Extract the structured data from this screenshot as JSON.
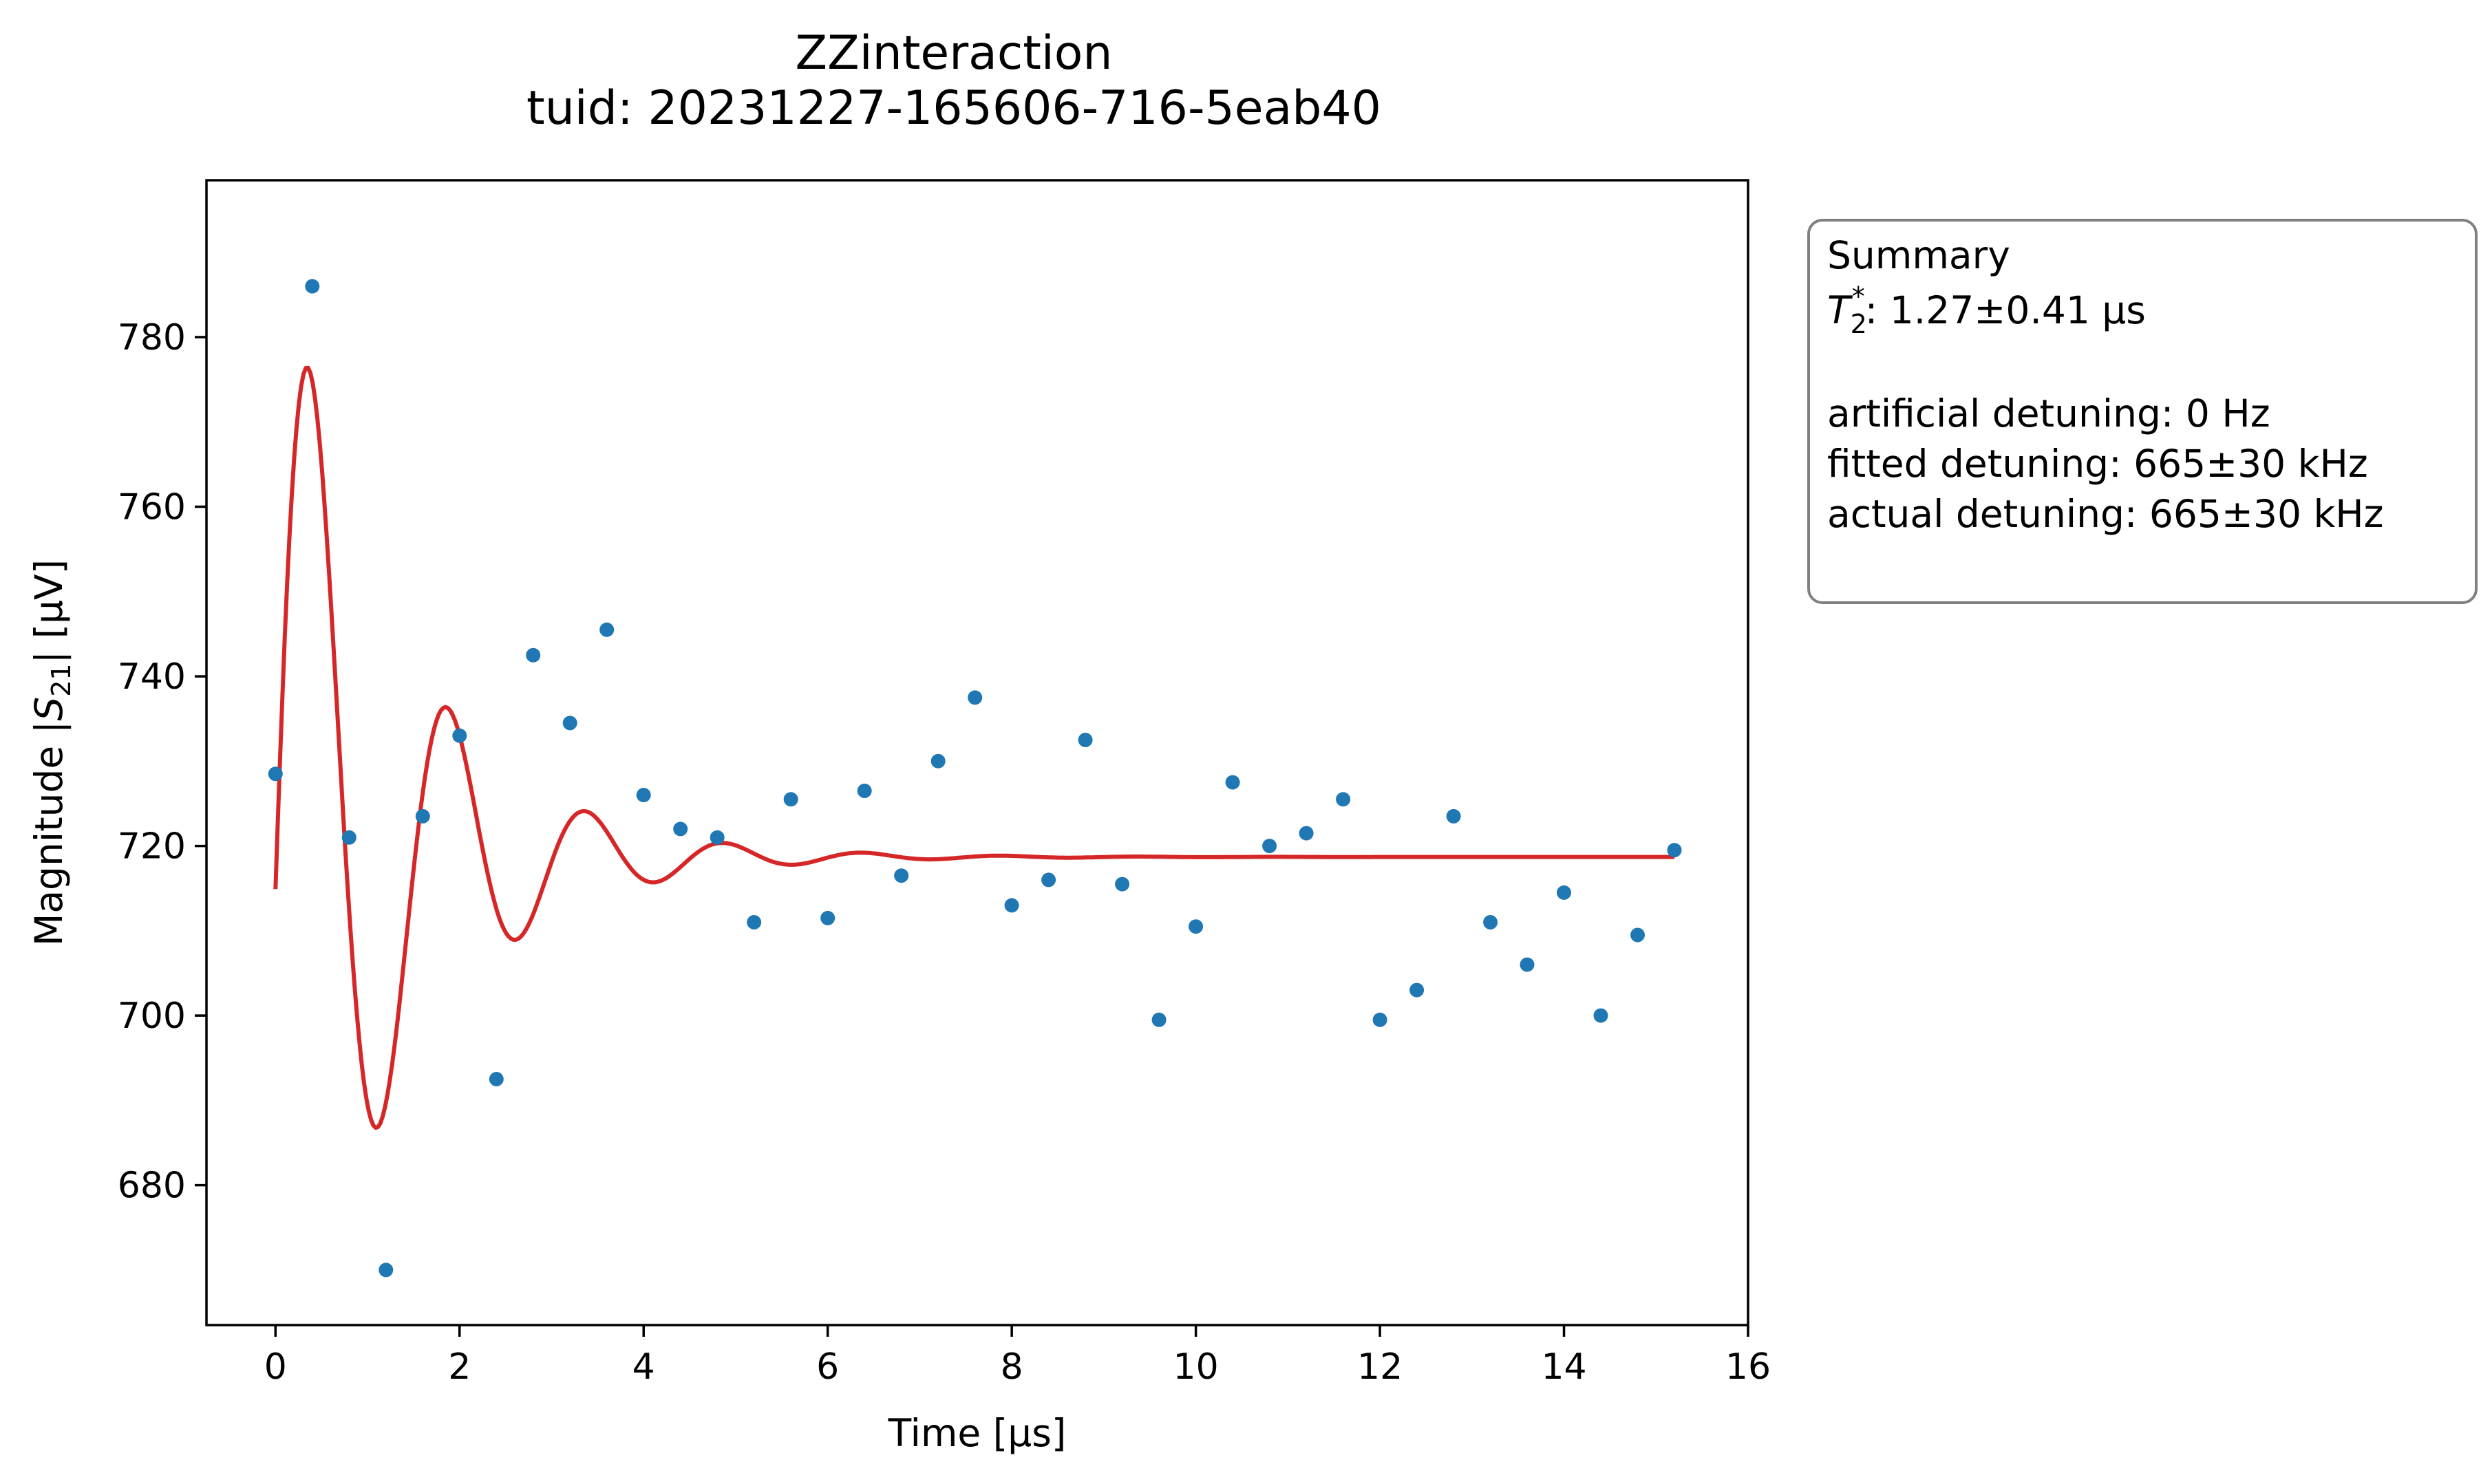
{
  "chart_data": {
    "type": "scatter",
    "title": "ZZinteraction",
    "subtitle": "tuid: 20231227-165606-716-5eab40",
    "xlabel": "Time [µs]",
    "ylabel_prefix": "Magnitude |",
    "ylabel_symbol": "S",
    "ylabel_subscript": "21",
    "ylabel_suffix": "| [µV]",
    "xlim": [
      -0.75,
      16
    ],
    "ylim": [
      663.5,
      798.5
    ],
    "xticks": [
      0,
      2,
      4,
      6,
      8,
      10,
      12,
      14,
      16
    ],
    "yticks": [
      680,
      700,
      720,
      740,
      760,
      780
    ],
    "grid": false,
    "series": [
      {
        "kind": "scatter",
        "color": "#1f77b4",
        "x": [
          0,
          0.4,
          0.8,
          1.2,
          1.6,
          2.0,
          2.4,
          2.8,
          3.2,
          3.6,
          4.0,
          4.4,
          4.8,
          5.2,
          5.6,
          6.0,
          6.4,
          6.8,
          7.2,
          7.6,
          8.0,
          8.4,
          8.8,
          9.2,
          9.6,
          10.0,
          10.4,
          10.8,
          11.2,
          11.6,
          12.0,
          12.4,
          12.8,
          13.2,
          13.6,
          14.0,
          14.4,
          14.8,
          15.2
        ],
        "y": [
          728.5,
          786,
          721,
          670,
          723.5,
          733,
          692.5,
          742.5,
          734.5,
          745.5,
          726,
          722,
          721,
          711,
          725.5,
          711.5,
          726.5,
          716.5,
          730,
          737.5,
          713,
          716,
          732.5,
          715.5,
          699.5,
          710.5,
          727.5,
          720,
          721.5,
          725.5,
          699.5,
          703,
          723.5,
          711,
          706,
          714.5,
          700,
          709.5,
          719.5
        ]
      },
      {
        "kind": "fit",
        "color": "#d62728",
        "x_range": [
          0,
          15.2
        ],
        "offset": 718.7,
        "amplitude": 77,
        "tau": 1.27,
        "frequency": 0.665,
        "phase": -1.62
      }
    ]
  },
  "summary": {
    "heading": "Summary",
    "t2_symbol": "T",
    "t2_sub": "2",
    "t2_sup": "*",
    "t2_value": ": 1.27±0.41 µs",
    "line_artificial": "artificial detuning: 0 Hz",
    "line_fitted": "fitted detuning: 665±30 kHz",
    "line_actual": "actual detuning: 665±30 kHz"
  }
}
